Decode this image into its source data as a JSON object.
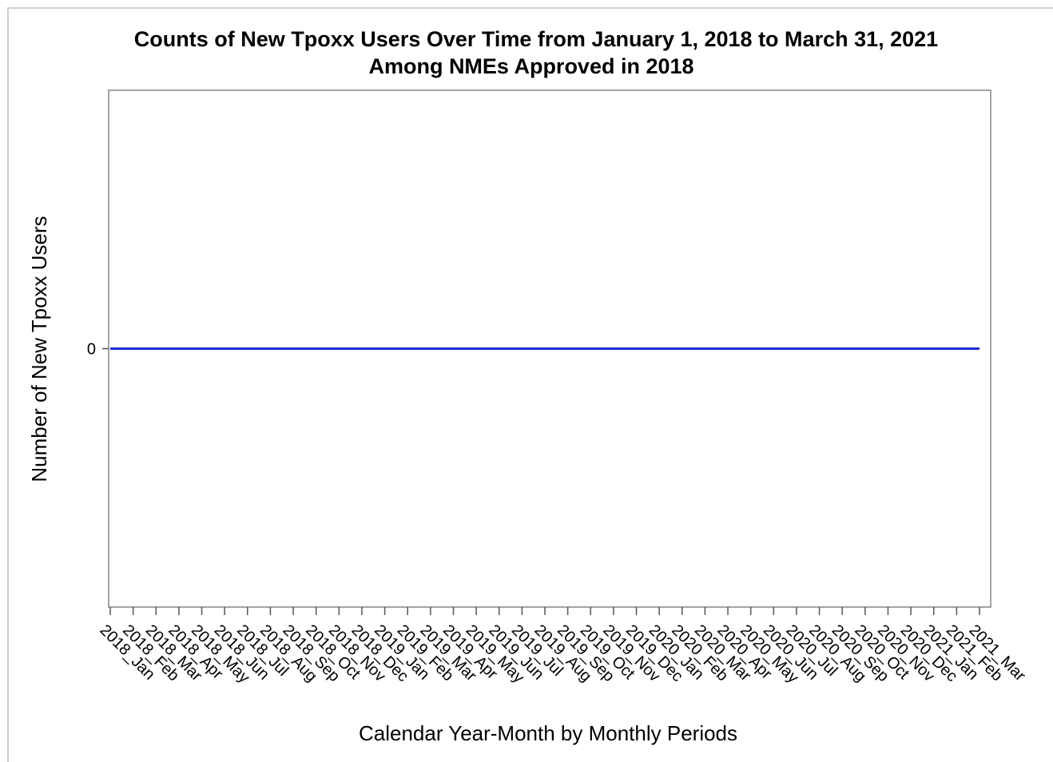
{
  "chart_data": {
    "type": "line",
    "title": [
      "Counts of New Tpoxx Users Over Time from January 1, 2018 to March 31, 2021",
      "Among NMEs Approved in 2018"
    ],
    "x_label": "Calendar Year-Month by Monthly Periods",
    "y_label": "Number of New Tpoxx Users",
    "categories": [
      "2018_Jan",
      "2018_Feb",
      "2018_Mar",
      "2018_Apr",
      "2018_May",
      "2018_Jun",
      "2018_Jul",
      "2018_Aug",
      "2018_Sep",
      "2018_Oct",
      "2018_Nov",
      "2018_Dec",
      "2019_Jan",
      "2019_Feb",
      "2019_Mar",
      "2019_Apr",
      "2019_May",
      "2019_Jun",
      "2019_Jul",
      "2019_Aug",
      "2019_Sep",
      "2019_Oct",
      "2019_Nov",
      "2019_Dec",
      "2020_Jan",
      "2020_Feb",
      "2020_Mar",
      "2020_Apr",
      "2020_May",
      "2020_Jun",
      "2020_Jul",
      "2020_Aug",
      "2020_Sep",
      "2020_Oct",
      "2020_Nov",
      "2020_Dec",
      "2021_Jan",
      "2021_Feb",
      "2021_Mar"
    ],
    "values": [
      0,
      0,
      0,
      0,
      0,
      0,
      0,
      0,
      0,
      0,
      0,
      0,
      0,
      0,
      0,
      0,
      0,
      0,
      0,
      0,
      0,
      0,
      0,
      0,
      0,
      0,
      0,
      0,
      0,
      0,
      0,
      0,
      0,
      0,
      0,
      0,
      0,
      0,
      0
    ],
    "color": "#1f2fd0",
    "ylim": [
      -1,
      1
    ],
    "yticks": [
      0
    ],
    "grid": false
  }
}
